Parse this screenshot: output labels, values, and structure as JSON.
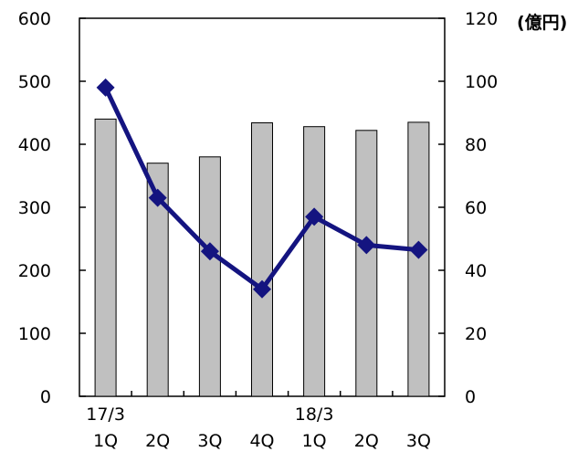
{
  "chart_data": {
    "type": "bar+line",
    "categories": [
      "1Q",
      "2Q",
      "3Q",
      "4Q",
      "1Q",
      "2Q",
      "3Q"
    ],
    "year_labels": [
      "17/3",
      "",
      "",
      "",
      "18/3",
      "",
      ""
    ],
    "left_axis": {
      "ylim": [
        0,
        600
      ],
      "ticks": [
        "0",
        "100",
        "200",
        "300",
        "400",
        "500",
        "600"
      ]
    },
    "right_axis": {
      "ylim": [
        0,
        120
      ],
      "ticks": [
        "0",
        "20",
        "40",
        "60",
        "80",
        "100",
        "120"
      ],
      "unit": "(億円)"
    },
    "series": [
      {
        "type": "bar",
        "axis": "left",
        "values": [
          440,
          370,
          380,
          434,
          428,
          422,
          435
        ],
        "color": "#c0c0c0"
      },
      {
        "type": "line",
        "axis": "right",
        "values": [
          98,
          63,
          46,
          34,
          57,
          48,
          46.5
        ],
        "color": "#141480"
      }
    ],
    "grid": false
  }
}
